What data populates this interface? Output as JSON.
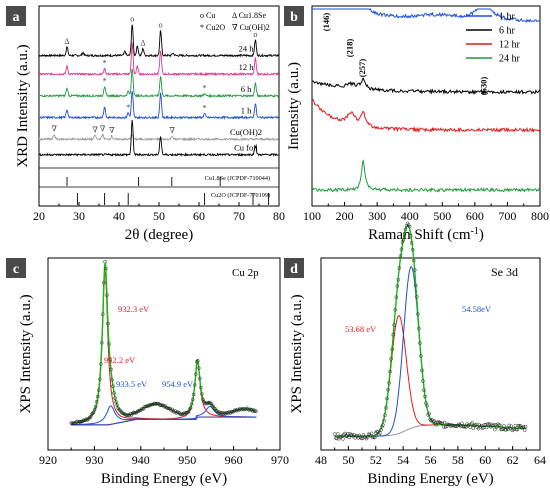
{
  "colors": {
    "black": "#000000",
    "gray": "#9a9a9a",
    "pink": "#e0358f",
    "green": "#1f9a3c",
    "blue": "#1e4fd8",
    "red": "#e41a1c",
    "panel_label_bg": "#4a4a4a",
    "xrd_cu_line": "#2a6fd8",
    "fit_green": "#18b818",
    "fit_gray": "#8c8c8c"
  },
  "chart_data": [
    {
      "id": "a",
      "type": "line",
      "panel_label": "a",
      "xlabel": "2θ (degree)",
      "ylabel": "XRD Intensity (a.u.)",
      "xlim": [
        20,
        80
      ],
      "xticks": [
        20,
        30,
        40,
        50,
        60,
        70,
        80
      ],
      "legend": [
        {
          "symbol": "o",
          "text": "Cu"
        },
        {
          "symbol": "Δ",
          "text": "Cu1.8Se"
        },
        {
          "symbol": "*",
          "text": "Cu2O"
        },
        {
          "symbol": "∇",
          "text": "Cu(OH)2"
        }
      ],
      "series": [
        {
          "name": "24 h",
          "color": "#000000",
          "offset": 8.0,
          "peaks": [
            [
              27.0,
              0.55
            ],
            [
              31.0,
              0.2
            ],
            [
              41.5,
              0.25
            ],
            [
              43.3,
              2.0
            ],
            [
              44.6,
              0.6
            ],
            [
              46.0,
              0.45
            ],
            [
              50.4,
              1.6
            ],
            [
              53.5,
              0.15
            ],
            [
              74.1,
              1.0
            ]
          ]
        },
        {
          "name": "12 h",
          "color": "#e0358f",
          "offset": 6.8,
          "peaks": [
            [
              27.0,
              0.5
            ],
            [
              36.4,
              0.35
            ],
            [
              43.3,
              2.0
            ],
            [
              44.6,
              0.5
            ],
            [
              50.4,
              1.5
            ],
            [
              74.1,
              1.0
            ]
          ]
        },
        {
          "name": "6 h",
          "color": "#1f9a3c",
          "offset": 5.4,
          "peaks": [
            [
              27.0,
              0.5
            ],
            [
              36.4,
              0.6
            ],
            [
              42.3,
              0.3
            ],
            [
              43.3,
              1.8
            ],
            [
              50.4,
              1.3
            ],
            [
              61.4,
              0.15
            ],
            [
              74.1,
              0.8
            ]
          ]
        },
        {
          "name": "1 h",
          "color": "#1e4fd8",
          "offset": 4.0,
          "peaks": [
            [
              27.0,
              0.5
            ],
            [
              36.4,
              0.7
            ],
            [
              42.3,
              0.3
            ],
            [
              43.3,
              1.7
            ],
            [
              50.4,
              1.6
            ],
            [
              61.4,
              0.25
            ],
            [
              74.1,
              0.9
            ]
          ]
        },
        {
          "name": "Cu(OH)2",
          "color": "#9a9a9a",
          "offset": 2.6,
          "peaks": [
            [
              16.7,
              0.3
            ],
            [
              23.8,
              0.3
            ],
            [
              34.0,
              0.25
            ],
            [
              35.9,
              0.3
            ],
            [
              38.2,
              0.2
            ],
            [
              43.3,
              0.3
            ],
            [
              53.3,
              0.2
            ]
          ]
        },
        {
          "name": "Cu foil",
          "color": "#000000",
          "offset": 1.6,
          "peaks": [
            [
              43.3,
              2.2
            ],
            [
              50.4,
              1.2
            ],
            [
              74.1,
              0.6
            ]
          ]
        }
      ],
      "markers": [
        {
          "x": 27.0,
          "series": "24 h",
          "symbol": "Δ"
        },
        {
          "x": 43.3,
          "series": "24 h",
          "symbol": "o"
        },
        {
          "x": 46.0,
          "series": "24 h",
          "symbol": "Δ"
        },
        {
          "x": 50.4,
          "series": "24 h",
          "symbol": "o"
        },
        {
          "x": 74.1,
          "series": "24 h",
          "symbol": "o"
        },
        {
          "x": 36.4,
          "series": "12 h",
          "symbol": "*"
        },
        {
          "x": 36.4,
          "series": "6 h",
          "symbol": "*"
        },
        {
          "x": 61.4,
          "series": "6 h",
          "symbol": "*"
        },
        {
          "x": 42.3,
          "series": "1 h",
          "symbol": "*"
        },
        {
          "x": 61.4,
          "series": "1 h",
          "symbol": "*"
        },
        {
          "x": 23.8,
          "series": "Cu(OH)2",
          "symbol": "∇"
        },
        {
          "x": 34.0,
          "series": "Cu(OH)2",
          "symbol": "∇"
        },
        {
          "x": 35.9,
          "series": "Cu(OH)2",
          "symbol": "∇"
        },
        {
          "x": 38.2,
          "series": "Cu(OH)2",
          "symbol": "∇"
        },
        {
          "x": 53.3,
          "series": "Cu(OH)2",
          "symbol": "∇"
        }
      ],
      "references": [
        {
          "name": "Cu1.8Se (JCPDF-710044)",
          "lines": [
            27.0,
            44.9,
            53.2,
            65.3
          ]
        },
        {
          "name": "Cu2O (JCPDF-770199)",
          "lines": [
            29.6,
            36.4,
            42.3,
            61.4,
            73.5,
            77.4
          ]
        }
      ]
    },
    {
      "id": "b",
      "type": "line",
      "panel_label": "b",
      "xlabel": "Raman Shift (cm-1)",
      "ylabel": "Intensity (a.u.)",
      "xlim": [
        100,
        800
      ],
      "xticks": [
        100,
        200,
        300,
        400,
        500,
        600,
        700,
        800
      ],
      "legend_position": "top-right",
      "annotations": [
        {
          "text": "(146)",
          "x": 146
        },
        {
          "text": "(218)",
          "x": 218
        },
        {
          "text": "(257)",
          "x": 257
        },
        {
          "text": "(630)",
          "x": 630
        }
      ],
      "series": [
        {
          "name": "1 hr",
          "color": "#1e4fd8"
        },
        {
          "name": "6 hr",
          "color": "#000000"
        },
        {
          "name": "12 hr",
          "color": "#e41a1c"
        },
        {
          "name": "24 hr",
          "color": "#1f9a3c"
        }
      ]
    },
    {
      "id": "c",
      "type": "line",
      "panel_label": "c",
      "title": "Cu 2p",
      "xlabel": "Binding Energy (eV)",
      "ylabel": "XPS Intensity (a.u.)",
      "xlim": [
        920,
        970
      ],
      "xticks": [
        920,
        930,
        940,
        950,
        960,
        970
      ],
      "peaks": [
        {
          "label": "932.3 eV",
          "x": 932.3,
          "height": 1.0,
          "color": "#e41a1c"
        },
        {
          "label": "933.5 eV",
          "x": 933.5,
          "height": 0.12,
          "color": "#1e4fd8"
        },
        {
          "label": "952.2 eV",
          "x": 952.2,
          "height": 0.36,
          "color": "#e41a1c"
        },
        {
          "label": "954.9 eV",
          "x": 954.9,
          "height": 0.07,
          "color": "#1e4fd8"
        }
      ],
      "satellites": [
        [
          942.0,
          0.06
        ],
        [
          945.0,
          0.05
        ],
        [
          962.5,
          0.05
        ]
      ]
    },
    {
      "id": "d",
      "type": "line",
      "panel_label": "d",
      "title": "Se 3d",
      "xlabel": "Binding Energy (eV)",
      "ylabel": "XPS Intensity (a.u.)",
      "xlim": [
        48,
        64
      ],
      "xticks": [
        48,
        50,
        52,
        54,
        56,
        58,
        60,
        62,
        64
      ],
      "peaks": [
        {
          "label": "53.68 eV",
          "x": 53.68,
          "height": 0.62,
          "color": "#e41a1c"
        },
        {
          "label": "54.58eV",
          "x": 54.58,
          "height": 0.85,
          "color": "#1e4fd8"
        }
      ]
    }
  ]
}
